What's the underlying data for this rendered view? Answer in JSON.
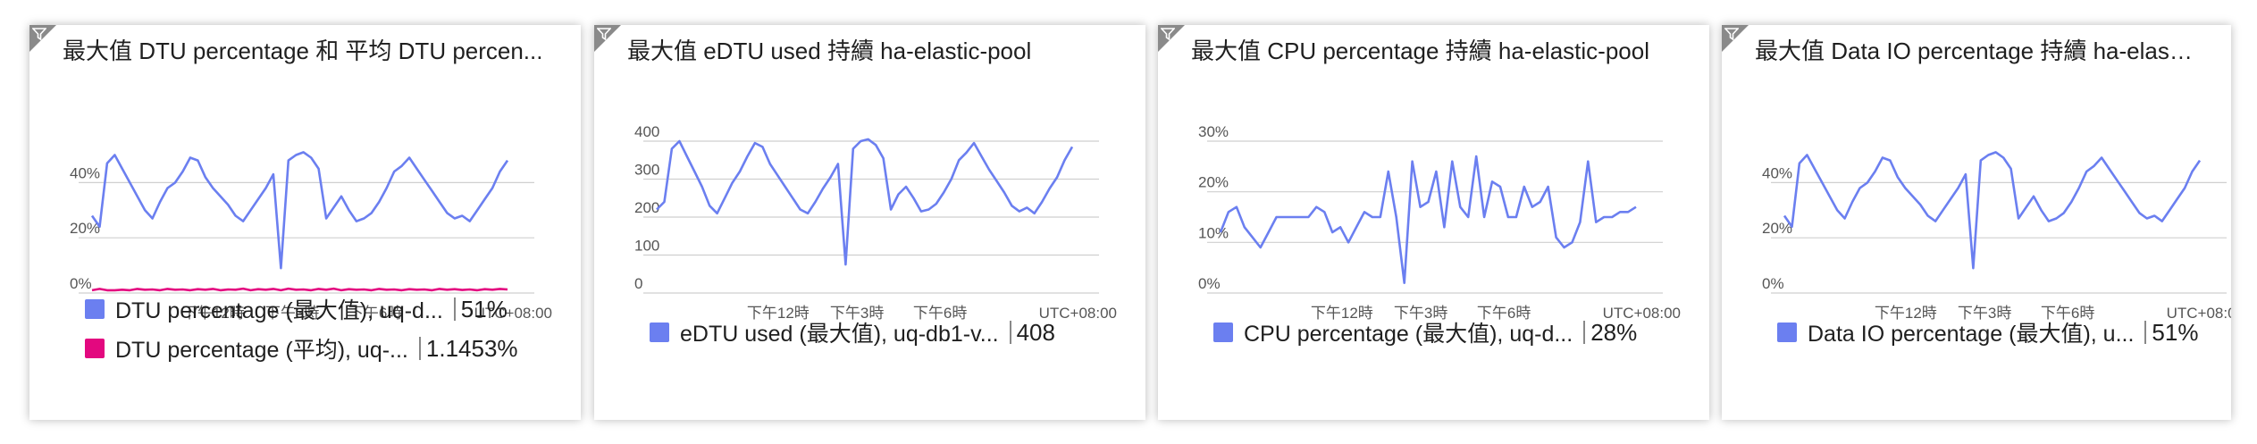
{
  "colors": {
    "blue": "#6b7ff0",
    "pink": "#e3087f",
    "grid": "#cfcfcf"
  },
  "filter_icon": "filter-icon",
  "tiles": [
    {
      "title": "最大值 DTU percentage 和 平均 DTU percen...",
      "legend": [
        {
          "label": "DTU percentage (最大值), uq-d...",
          "value": "51%",
          "color": "#6b7ff0"
        },
        {
          "label": "DTU percentage (平均), uq-...",
          "value": "1.1453%",
          "color": "#e3087f"
        }
      ]
    },
    {
      "title": "最大值 eDTU used 持續 ha-elastic-pool",
      "legend": [
        {
          "label": "eDTU used (最大值), uq-db1-v...",
          "value": "408",
          "color": "#6b7ff0"
        }
      ]
    },
    {
      "title": "最大值 CPU percentage 持續 ha-elastic-pool",
      "legend": [
        {
          "label": "CPU percentage (最大值), uq-d...",
          "value": "28%",
          "color": "#6b7ff0"
        }
      ]
    },
    {
      "title": "最大值 Data IO percentage 持續 ha-elastic-...",
      "legend": [
        {
          "label": "Data IO percentage (最大值), u...",
          "value": "51%",
          "color": "#6b7ff0"
        }
      ]
    }
  ],
  "chart_data": [
    {
      "type": "line",
      "y_ticks": [
        "0%",
        "20%",
        "40%"
      ],
      "ylim": [
        0,
        55
      ],
      "x_ticks": [
        "下午12時",
        "下午3時",
        "下午6時"
      ],
      "timezone": "UTC+08:00",
      "series": [
        {
          "name": "DTU percentage (最大值), uq-d...",
          "color": "#6b7ff0",
          "values": [
            28,
            24,
            47,
            50,
            45,
            40,
            35,
            30,
            27,
            33,
            38,
            40,
            44,
            49,
            48,
            42,
            38,
            35,
            32,
            28,
            26,
            30,
            34,
            38,
            43,
            9,
            48,
            50,
            51,
            49,
            45,
            27,
            31,
            35,
            30,
            26,
            27,
            29,
            33,
            38,
            44,
            46,
            49,
            45,
            41,
            37,
            33,
            29,
            27,
            28,
            26,
            30,
            34,
            38,
            44,
            48
          ]
        },
        {
          "name": "DTU percentage (平均), uq-...",
          "color": "#e3087f",
          "values": [
            1,
            1.5,
            1,
            1,
            1.2,
            1,
            1.5,
            1.2,
            1.3,
            1,
            1.5,
            1.2,
            1.3,
            1,
            1.4,
            1.2,
            1.5,
            1,
            1.3,
            1.2,
            1.6,
            1,
            1.4,
            1.2,
            1.5,
            1,
            1.6,
            1.2,
            1.3,
            1,
            1.5,
            1.2,
            1.6,
            1,
            1.4,
            1.2,
            1.3,
            1,
            1.5,
            1.2,
            1.3,
            1,
            1.4,
            1.2,
            1.3,
            1,
            1.5,
            1.2,
            1.4,
            1.1,
            1.3,
            1,
            1.4,
            1.2,
            1.5,
            1.3
          ]
        }
      ]
    },
    {
      "type": "line",
      "y_ticks": [
        "0",
        "100",
        "200",
        "300",
        "400"
      ],
      "ylim": [
        0,
        400
      ],
      "x_ticks": [
        "下午12時",
        "下午3時",
        "下午6時"
      ],
      "timezone": "UTC+08:00",
      "series": [
        {
          "name": "eDTU used (最大值), uq-db1-v...",
          "color": "#6b7ff0",
          "values": [
            220,
            240,
            380,
            400,
            360,
            320,
            280,
            230,
            210,
            250,
            290,
            320,
            360,
            395,
            385,
            340,
            310,
            280,
            250,
            220,
            210,
            240,
            275,
            305,
            340,
            75,
            380,
            400,
            405,
            390,
            355,
            220,
            260,
            280,
            250,
            215,
            220,
            235,
            265,
            300,
            350,
            370,
            395,
            360,
            325,
            295,
            265,
            230,
            215,
            225,
            210,
            240,
            275,
            305,
            350,
            385
          ]
        }
      ]
    },
    {
      "type": "line",
      "y_ticks": [
        "0%",
        "10%",
        "20%",
        "30%"
      ],
      "ylim": [
        0,
        30
      ],
      "x_ticks": [
        "下午12時",
        "下午3時",
        "下午6時"
      ],
      "timezone": "UTC+08:00",
      "series": [
        {
          "name": "CPU percentage (最大值), uq-d...",
          "color": "#6b7ff0",
          "values": [
            12,
            16,
            17,
            13,
            11,
            9,
            12,
            15,
            15,
            15,
            15,
            15,
            17,
            16,
            12,
            13,
            10,
            13,
            16,
            15,
            15,
            24,
            15,
            2,
            26,
            17,
            18,
            24,
            13,
            26,
            17,
            15,
            27,
            15,
            22,
            21,
            15,
            15,
            21,
            17,
            18,
            21,
            11,
            9,
            10,
            14,
            26,
            14,
            15,
            15,
            16,
            16,
            17
          ]
        }
      ]
    },
    {
      "type": "line",
      "y_ticks": [
        "0%",
        "20%",
        "40%"
      ],
      "ylim": [
        0,
        55
      ],
      "x_ticks": [
        "下午12時",
        "下午3時",
        "下午6時"
      ],
      "timezone": "UTC+08:00",
      "series": [
        {
          "name": "Data IO percentage (最大值), u...",
          "color": "#6b7ff0",
          "values": [
            28,
            24,
            47,
            50,
            45,
            40,
            35,
            30,
            27,
            33,
            38,
            40,
            44,
            49,
            48,
            42,
            38,
            35,
            32,
            28,
            26,
            30,
            34,
            38,
            43,
            9,
            48,
            50,
            51,
            49,
            45,
            27,
            31,
            35,
            30,
            26,
            27,
            29,
            33,
            38,
            44,
            46,
            49,
            45,
            41,
            37,
            33,
            29,
            27,
            28,
            26,
            30,
            34,
            38,
            44,
            48
          ]
        }
      ]
    }
  ]
}
